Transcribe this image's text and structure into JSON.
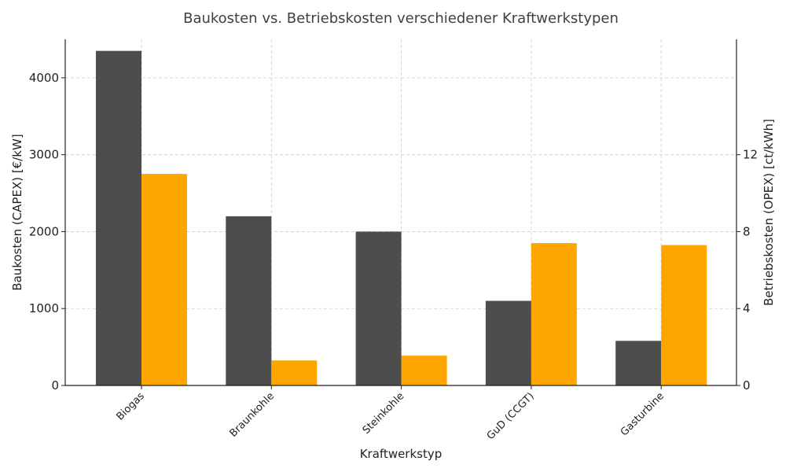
{
  "chart_data": {
    "type": "bar",
    "title": "Baukosten vs. Betriebskosten verschiedener Kraftwerkstypen",
    "xlabel": "Kraftwerkstyp",
    "ylabel_left": "Baukosten (CAPEX) [€/kW]",
    "ylabel_right": "Betriebskosten (OPEX) [ct/kWh]",
    "categories": [
      "Biogas",
      "Braunkohle",
      "Steinkohle",
      "GuD (CCGT)",
      "Gasturbine"
    ],
    "series": [
      {
        "values": [
          4350,
          2200,
          2000,
          1100,
          580
        ],
        "axis": "left",
        "color": "#4d4d4d"
      },
      {
        "values": [
          11.0,
          1.3,
          1.55,
          7.4,
          7.3
        ],
        "axis": "right",
        "color": "#ffa500"
      }
    ],
    "ylim_left": [
      0,
      4500
    ],
    "ylim_right": [
      0,
      18
    ],
    "yticks_left": [
      0,
      1000,
      2000,
      3000,
      4000
    ],
    "yticks_right": [
      0,
      4,
      8,
      12
    ],
    "grid": true
  }
}
